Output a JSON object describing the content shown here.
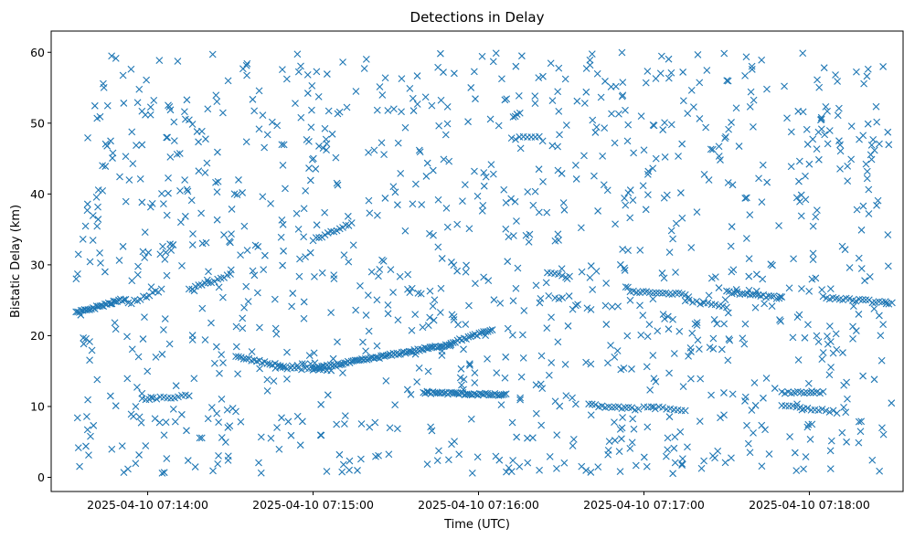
{
  "chart_data": {
    "type": "scatter",
    "title": "Detections in Delay",
    "xlabel": "Time (UTC)",
    "ylabel": "Bistatic Delay (km)",
    "marker": "x",
    "color": "#1f77b4",
    "grid": false,
    "xlim": [
      "2025-04-10 07:13:25",
      "2025-04-10 07:18:34"
    ],
    "ylim": [
      -2,
      63
    ],
    "xticks": [
      "2025-04-10 07:14:00",
      "2025-04-10 07:15:00",
      "2025-04-10 07:16:00",
      "2025-04-10 07:17:00",
      "2025-04-10 07:18:00"
    ],
    "yticks": [
      0,
      10,
      20,
      30,
      40,
      50,
      60
    ],
    "tracks": [
      {
        "x": [
          "2025-04-10 07:13:34",
          "2025-04-10 07:13:52"
        ],
        "y": [
          23.2,
          25.2
        ],
        "n": 30
      },
      {
        "x": [
          "2025-04-10 07:13:53",
          "2025-04-10 07:14:05"
        ],
        "y": [
          24.5,
          26.5
        ],
        "n": 12
      },
      {
        "x": [
          "2025-04-10 07:13:58",
          "2025-04-10 07:14:15"
        ],
        "y": [
          11.0,
          11.5
        ],
        "n": 14
      },
      {
        "x": [
          "2025-04-10 07:14:15",
          "2025-04-10 07:14:30"
        ],
        "y": [
          26.5,
          28.6
        ],
        "n": 14
      },
      {
        "x": [
          "2025-04-10 07:14:32",
          "2025-04-10 07:14:50"
        ],
        "y": [
          17.0,
          15.6
        ],
        "n": 20
      },
      {
        "x": [
          "2025-04-10 07:14:48",
          "2025-04-10 07:15:05"
        ],
        "y": [
          15.5,
          15.2
        ],
        "n": 14
      },
      {
        "x": [
          "2025-04-10 07:15:00",
          "2025-04-10 07:15:14"
        ],
        "y": [
          33.5,
          35.8
        ],
        "n": 14
      },
      {
        "x": [
          "2025-04-10 07:15:00",
          "2025-04-10 07:15:50"
        ],
        "y": [
          15.3,
          18.8
        ],
        "n": 80
      },
      {
        "x": [
          "2025-04-10 07:15:50",
          "2025-04-10 07:16:05"
        ],
        "y": [
          19.0,
          20.8
        ],
        "n": 20
      },
      {
        "x": [
          "2025-04-10 07:15:40",
          "2025-04-10 07:16:10"
        ],
        "y": [
          12.0,
          11.6
        ],
        "n": 45
      },
      {
        "x": [
          "2025-04-10 07:16:12",
          "2025-04-10 07:16:22"
        ],
        "y": [
          47.8,
          48.2
        ],
        "n": 8
      },
      {
        "x": [
          "2025-04-10 07:16:25",
          "2025-04-10 07:16:33"
        ],
        "y": [
          28.8,
          28.3
        ],
        "n": 7
      },
      {
        "x": [
          "2025-04-10 07:16:40",
          "2025-04-10 07:16:58"
        ],
        "y": [
          10.2,
          9.6
        ],
        "n": 16
      },
      {
        "x": [
          "2025-04-10 07:16:55",
          "2025-04-10 07:17:15"
        ],
        "y": [
          26.3,
          25.8
        ],
        "n": 18
      },
      {
        "x": [
          "2025-04-10 07:17:00",
          "2025-04-10 07:17:15"
        ],
        "y": [
          10.0,
          9.4
        ],
        "n": 12
      },
      {
        "x": [
          "2025-04-10 07:17:15",
          "2025-04-10 07:17:30"
        ],
        "y": [
          25.0,
          24.0
        ],
        "n": 12
      },
      {
        "x": [
          "2025-04-10 07:17:30",
          "2025-04-10 07:17:50"
        ],
        "y": [
          26.2,
          25.3
        ],
        "n": 22
      },
      {
        "x": [
          "2025-04-10 07:17:50",
          "2025-04-10 07:18:05"
        ],
        "y": [
          12.0,
          12.0
        ],
        "n": 14
      },
      {
        "x": [
          "2025-04-10 07:17:50",
          "2025-04-10 07:18:10"
        ],
        "y": [
          10.2,
          9.2
        ],
        "n": 16
      },
      {
        "x": [
          "2025-04-10 07:18:05",
          "2025-04-10 07:18:30"
        ],
        "y": [
          25.4,
          24.6
        ],
        "n": 22
      }
    ],
    "clutter": {
      "count": 1150,
      "x_range": [
        "2025-04-10 07:13:34",
        "2025-04-10 07:18:30"
      ],
      "y_range": [
        0.5,
        60
      ]
    }
  }
}
